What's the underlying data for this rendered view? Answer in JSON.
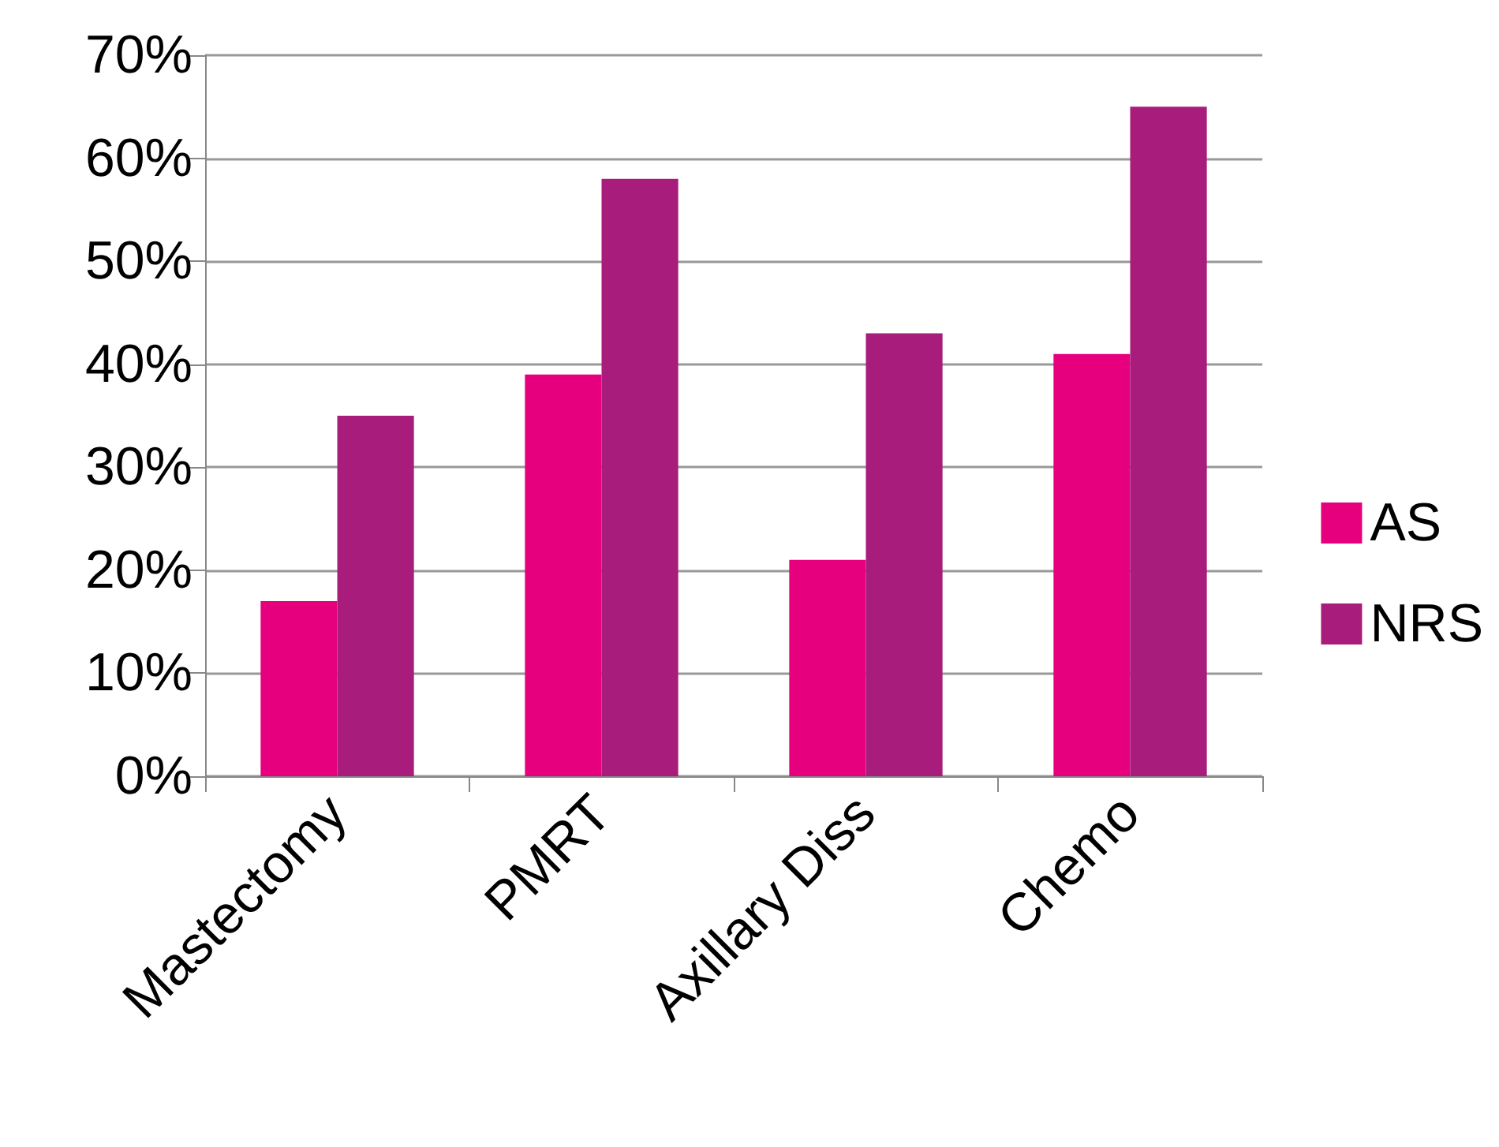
{
  "chart_data": {
    "type": "bar",
    "categories": [
      "Mastectomy",
      "PMRT",
      "Axillary Diss",
      "Chemo"
    ],
    "series": [
      {
        "name": "AS",
        "color": "#e6007e",
        "values": [
          17,
          39,
          21,
          41
        ]
      },
      {
        "name": "NRS",
        "color": "#a81c7c",
        "values": [
          35,
          58,
          43,
          65
        ]
      }
    ],
    "ylim": [
      0,
      70
    ],
    "yticks": [
      {
        "value": 0,
        "label": "0%"
      },
      {
        "value": 10,
        "label": "10%"
      },
      {
        "value": 20,
        "label": "20%"
      },
      {
        "value": 30,
        "label": "30%"
      },
      {
        "value": 40,
        "label": "40%"
      },
      {
        "value": 50,
        "label": "50%"
      },
      {
        "value": 60,
        "label": "60%"
      },
      {
        "value": 70,
        "label": "70%"
      }
    ],
    "grid": "y",
    "legend": "right"
  }
}
